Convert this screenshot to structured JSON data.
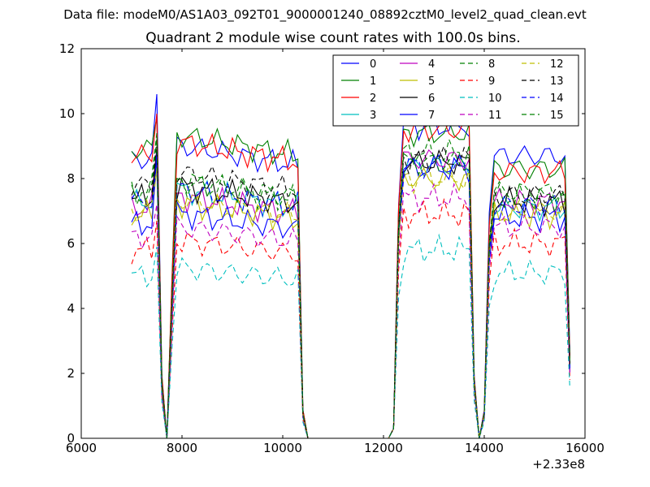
{
  "suptitle": "Data file: modeM0/AS1A03_092T01_9000001240_08892cztM0_level2_quad_clean.evt",
  "chart_data": {
    "type": "line",
    "title": "Quadrant 2 module wise count rates with 100.0s bins.",
    "xlabel": "",
    "ylabel": "",
    "x_offset_label": "+2.33e8",
    "xlim": [
      6000,
      16000
    ],
    "ylim": [
      0,
      12
    ],
    "xticks": [
      6000,
      8000,
      10000,
      12000,
      14000,
      16000
    ],
    "yticks": [
      0,
      2,
      4,
      6,
      8,
      10,
      12
    ],
    "grid": false,
    "legend": {
      "placement": "top-right",
      "columns": 4
    },
    "x": [
      7000,
      7100,
      7200,
      7300,
      7400,
      7500,
      7600,
      7700,
      7800,
      7900,
      8000,
      8100,
      8200,
      8300,
      8400,
      8500,
      8600,
      8700,
      8800,
      8900,
      9000,
      9100,
      9200,
      9300,
      9400,
      9500,
      9600,
      9700,
      9800,
      9900,
      10000,
      10100,
      10200,
      10300,
      10400,
      10500,
      10600,
      10700,
      10800,
      10900,
      11000,
      11100,
      11200,
      11300,
      11400,
      11500,
      11600,
      11700,
      11800,
      11900,
      12000,
      12100,
      12200,
      12300,
      12400,
      12500,
      12600,
      12700,
      12800,
      12900,
      13000,
      13100,
      13200,
      13300,
      13400,
      13500,
      13600,
      13700,
      13800,
      13900,
      14000,
      14100,
      14200,
      14300,
      14400,
      14500,
      14600,
      14700,
      14800,
      14900,
      15000,
      15100,
      15200,
      15300,
      15400,
      15500,
      15600,
      15700
    ],
    "series": [
      {
        "name": "0",
        "color": "#0000ff",
        "dash": "solid",
        "seg1": 8.6,
        "seg2": 9.6,
        "seg3": 8.7,
        "spike": 10.6
      },
      {
        "name": "1",
        "color": "#008000",
        "dash": "solid",
        "seg1": 8.9,
        "seg2": 9.4,
        "seg3": 8.3,
        "spike": 9.9
      },
      {
        "name": "2",
        "color": "#ff0000",
        "dash": "solid",
        "seg1": 8.7,
        "seg2": 9.5,
        "seg3": 8.2,
        "spike": 10.0
      },
      {
        "name": "3",
        "color": "#00bfbf",
        "dash": "solid",
        "seg1": 7.3,
        "seg2": 8.4,
        "seg3": 7.1,
        "spike": 8.6
      },
      {
        "name": "4",
        "color": "#bf00bf",
        "dash": "solid",
        "seg1": 7.1,
        "seg2": 8.6,
        "seg3": 7.3,
        "spike": 8.9
      },
      {
        "name": "5",
        "color": "#bfbf00",
        "dash": "solid",
        "seg1": 6.9,
        "seg2": 8.0,
        "seg3": 6.9,
        "spike": 8.4
      },
      {
        "name": "6",
        "color": "#000000",
        "dash": "solid",
        "seg1": 7.4,
        "seg2": 8.5,
        "seg3": 7.3,
        "spike": 8.9
      },
      {
        "name": "7",
        "color": "#0000ff",
        "dash": "solid",
        "seg1": 6.6,
        "seg2": 8.3,
        "seg3": 6.8,
        "spike": 8.8
      },
      {
        "name": "8",
        "color": "#008000",
        "dash": "dashed",
        "seg1": 7.6,
        "seg2": 8.8,
        "seg3": 7.4,
        "spike": 9.4
      },
      {
        "name": "9",
        "color": "#ff0000",
        "dash": "dashed",
        "seg1": 5.8,
        "seg2": 6.9,
        "seg3": 6.0,
        "spike": 6.7
      },
      {
        "name": "10",
        "color": "#00bfbf",
        "dash": "dashed",
        "seg1": 5.0,
        "seg2": 5.8,
        "seg3": 5.1,
        "spike": 5.9
      },
      {
        "name": "11",
        "color": "#bf00bf",
        "dash": "dashed",
        "seg1": 6.2,
        "seg2": 7.4,
        "seg3": 6.5,
        "spike": 7.2
      },
      {
        "name": "12",
        "color": "#bfbf00",
        "dash": "dashed",
        "seg1": 7.0,
        "seg2": 8.0,
        "seg3": 7.0,
        "spike": 8.3
      },
      {
        "name": "13",
        "color": "#000000",
        "dash": "dashed",
        "seg1": 7.8,
        "seg2": 8.6,
        "seg3": 7.5,
        "spike": 9.2
      },
      {
        "name": "14",
        "color": "#0000ff",
        "dash": "dashed",
        "seg1": 7.3,
        "seg2": 8.4,
        "seg3": 7.2,
        "spike": 8.6
      },
      {
        "name": "15",
        "color": "#008000",
        "dash": "dashed",
        "seg1": 7.5,
        "seg2": 8.5,
        "seg3": 7.6,
        "spike": 9.2
      }
    ]
  }
}
